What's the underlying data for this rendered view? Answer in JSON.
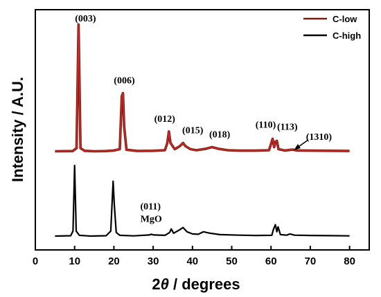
{
  "chart_data": {
    "type": "line",
    "xlabel_parts": [
      "2",
      "θ",
      " / degrees"
    ],
    "ylabel": "Intensity / A.U.",
    "xlim": [
      0,
      85
    ],
    "xticks": [
      "0",
      "10",
      "20",
      "30",
      "40",
      "50",
      "60",
      "70",
      "80"
    ],
    "yticks_shown": false,
    "legend_position": "top-right",
    "series": [
      {
        "name": "C-low",
        "color": "#cc2b2b",
        "outline": "#7a1a0e",
        "x": [
          5,
          9.5,
          10.5,
          11.0,
          11.5,
          12.5,
          15,
          18,
          20,
          21.5,
          22.0,
          22.3,
          22.6,
          23.2,
          26,
          30,
          33,
          33.6,
          34.0,
          34.4,
          35.5,
          36.8,
          37.6,
          38.2,
          39.5,
          41,
          43.5,
          45,
          46.5,
          49,
          52,
          56,
          59.5,
          60.0,
          60.4,
          60.8,
          61.1,
          61.5,
          61.9,
          63.5,
          65.0,
          65.5,
          66.5,
          70,
          75,
          80
        ],
        "y": [
          1.0,
          1.2,
          4,
          123,
          4,
          1.5,
          1.0,
          1.2,
          1.7,
          3,
          54,
          57,
          25,
          2.5,
          1.3,
          1.5,
          2,
          9,
          20,
          9,
          3,
          6,
          9,
          6,
          3,
          2,
          3.5,
          5,
          3.5,
          2,
          1.6,
          1.6,
          2,
          8,
          13,
          5,
          10,
          11,
          3,
          1.7,
          2.4,
          2.6,
          1.8,
          1.6,
          1.5,
          1.3
        ]
      },
      {
        "name": "C-high",
        "color": "#000000",
        "outline": "#000000",
        "x": [
          5,
          9,
          9.6,
          10.0,
          10.4,
          11.2,
          14,
          18,
          19.2,
          19.8,
          20.1,
          20.6,
          21.5,
          25,
          29,
          29.5,
          30.2,
          33,
          34.2,
          34.6,
          35.2,
          36.8,
          37.6,
          38.6,
          40,
          41.5,
          42.8,
          44.5,
          47,
          52,
          56,
          60.2,
          60.6,
          61.1,
          61.5,
          61.8,
          62.4,
          64,
          64.8,
          66,
          70,
          75,
          80
        ],
        "y": [
          1.0,
          1.5,
          8,
          100,
          8,
          2,
          1.0,
          1.5,
          8,
          78,
          45,
          6,
          2,
          1.3,
          2.5,
          3.5,
          2.5,
          2,
          6,
          11,
          5,
          10,
          13,
          7,
          4,
          3.5,
          7,
          5,
          3,
          2.2,
          1.8,
          2,
          10,
          17,
          7,
          14,
          3,
          2.2,
          4,
          2.2,
          1.8,
          1.6,
          1.3
        ]
      }
    ],
    "annotations": [
      {
        "text": "(003)",
        "x": 11.0,
        "series": 0
      },
      {
        "text": "(006)",
        "x": 22.3,
        "series": 0
      },
      {
        "text": "(012)",
        "x": 34.0,
        "series": 0
      },
      {
        "text": "(015)",
        "x": 37.6,
        "series": 0
      },
      {
        "text": "(018)",
        "x": 45.0,
        "series": 0
      },
      {
        "text": "(110)",
        "x": 60.4,
        "series": 0
      },
      {
        "text": "(113)",
        "x": 61.5,
        "series": 0
      },
      {
        "text": "(1310)",
        "x": 65.5,
        "series": 0
      },
      {
        "text": "(011)",
        "x": 29.5,
        "series": 1
      },
      {
        "text": "MgO",
        "x": 29.5,
        "series": 1
      }
    ]
  }
}
